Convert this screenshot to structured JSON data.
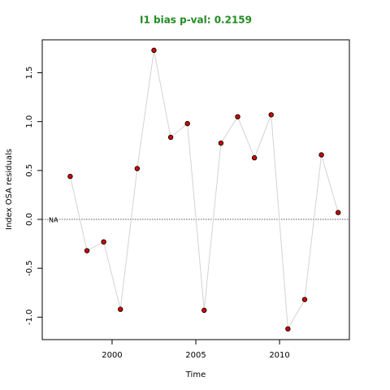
{
  "chart_data": {
    "type": "line",
    "title": "I1 bias p-val: 0.2159",
    "xlabel": "Time",
    "ylabel": "Index OSA residuals",
    "annotation": "NA",
    "hline": 0,
    "x": [
      1997.5,
      1998.5,
      1999.5,
      2000.5,
      2001.5,
      2002.5,
      2003.5,
      2004.5,
      2005.5,
      2006.5,
      2007.5,
      2008.5,
      2009.5,
      2010.5,
      2011.5,
      2012.5,
      2013.5
    ],
    "series": [
      {
        "color": "#d3d3d3",
        "point_color": "#cc0000",
        "values": [
          0.44,
          -0.32,
          -0.23,
          -0.92,
          0.52,
          1.73,
          0.84,
          0.98,
          -0.93,
          0.78,
          1.05,
          0.63,
          1.07,
          -1.12,
          -0.82,
          0.66,
          0.07
        ]
      }
    ],
    "xlim": [
      1995.83,
      2014.17
    ],
    "ylim": [
      -1.23,
      1.837
    ],
    "xticks": [
      2000,
      2005,
      2010
    ],
    "yticks": [
      {
        "value": -1,
        "label": "-1.0"
      },
      {
        "value": -0.5,
        "label": "-0.5"
      },
      {
        "value": 0,
        "label": "0.0"
      },
      {
        "value": 0.5,
        "label": "0.5"
      },
      {
        "value": 1,
        "label": "1.0"
      },
      {
        "value": 1.5,
        "label": "1.5"
      }
    ]
  }
}
